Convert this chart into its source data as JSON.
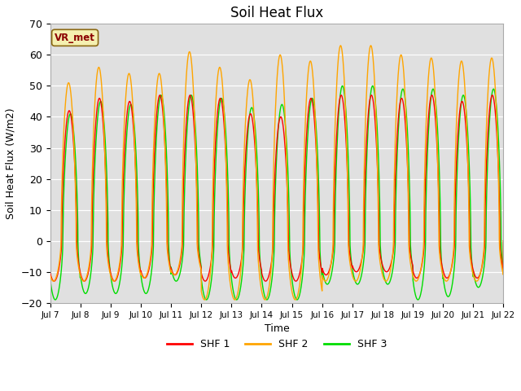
{
  "title": "Soil Heat Flux",
  "xlabel": "Time",
  "ylabel": "Soil Heat Flux (W/m2)",
  "ylim": [
    -20,
    70
  ],
  "yticks": [
    -20,
    -10,
    0,
    10,
    20,
    30,
    40,
    50,
    60,
    70
  ],
  "xlim_days": [
    7,
    22
  ],
  "xtick_labels": [
    "Jul 7",
    "Jul 8",
    "Jul 9",
    "Jul 10",
    "Jul 11",
    "Jul 12",
    "Jul 13",
    "Jul 14",
    "Jul 15",
    "Jul 16",
    "Jul 17",
    "Jul 18",
    "Jul 19",
    "Jul 20",
    "Jul 21",
    "Jul 22"
  ],
  "color_shf1": "#ff0000",
  "color_shf2": "#ffa500",
  "color_shf3": "#00dd00",
  "linewidth": 1.0,
  "bg_color": "#e0e0e0",
  "annotation_text": "VR_met",
  "annotation_color": "#8b0000",
  "legend_labels": [
    "SHF 1",
    "SHF 2",
    "SHF 3"
  ],
  "title_fontsize": 12,
  "label_fontsize": 9,
  "shf1_peaks": [
    42,
    46,
    45,
    47,
    47,
    46,
    41,
    40,
    46,
    47,
    47,
    46,
    47,
    45,
    47
  ],
  "shf2_peaks": [
    51,
    56,
    54,
    54,
    61,
    56,
    52,
    60,
    58,
    63,
    63,
    60,
    59,
    58,
    59
  ],
  "shf3_peaks": [
    41,
    45,
    44,
    47,
    47,
    46,
    43,
    44,
    46,
    50,
    50,
    49,
    49,
    47,
    49
  ],
  "shf1_troughs": [
    13,
    13,
    13,
    12,
    11,
    13,
    12,
    13,
    13,
    11,
    10,
    10,
    12,
    12,
    12
  ],
  "shf2_troughs": [
    13,
    13,
    13,
    12,
    11,
    19,
    19,
    19,
    19,
    13,
    13,
    13,
    13,
    13,
    13
  ],
  "shf3_troughs": [
    19,
    17,
    17,
    17,
    13,
    19,
    19,
    19,
    19,
    14,
    14,
    14,
    19,
    18,
    15
  ],
  "peak_phase": 0.38,
  "shf1_phase": 0.38,
  "shf2_phase": 0.36,
  "shf3_phase": 0.42
}
